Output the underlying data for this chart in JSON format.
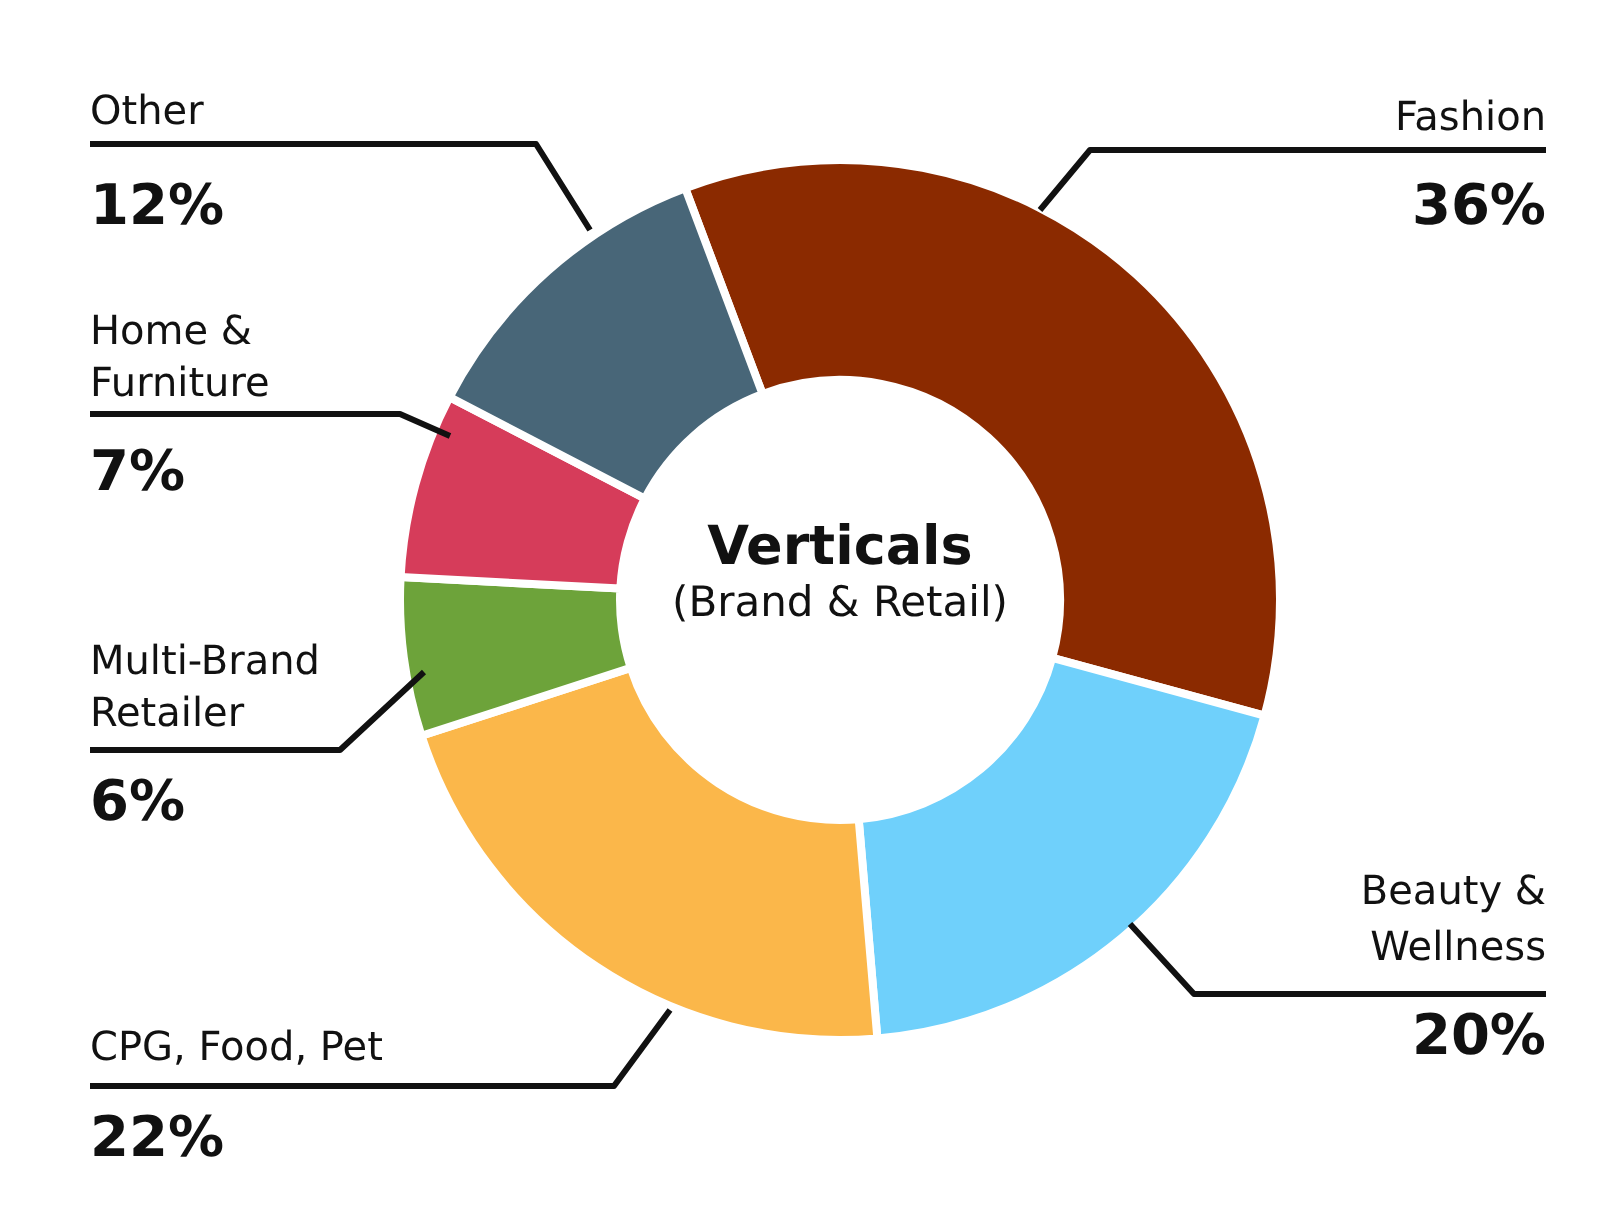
{
  "chart_data": {
    "type": "donut",
    "title": "Verticals",
    "subtitle": "(Brand & Retail)",
    "categories": [
      "Fashion",
      "Beauty & Wellness",
      "CPG, Food, Pet",
      "Multi-Brand Retailer",
      "Home & Furniture",
      "Other"
    ],
    "values": [
      36,
      20,
      22,
      6,
      7,
      12
    ],
    "value_labels": [
      "36%",
      "20%",
      "22%",
      "6%",
      "7%",
      "12%"
    ],
    "colors": [
      "#8b2a00",
      "#6fd0fb",
      "#fbb74a",
      "#6da33a",
      "#d63c5a",
      "#486678"
    ],
    "legend": false
  }
}
